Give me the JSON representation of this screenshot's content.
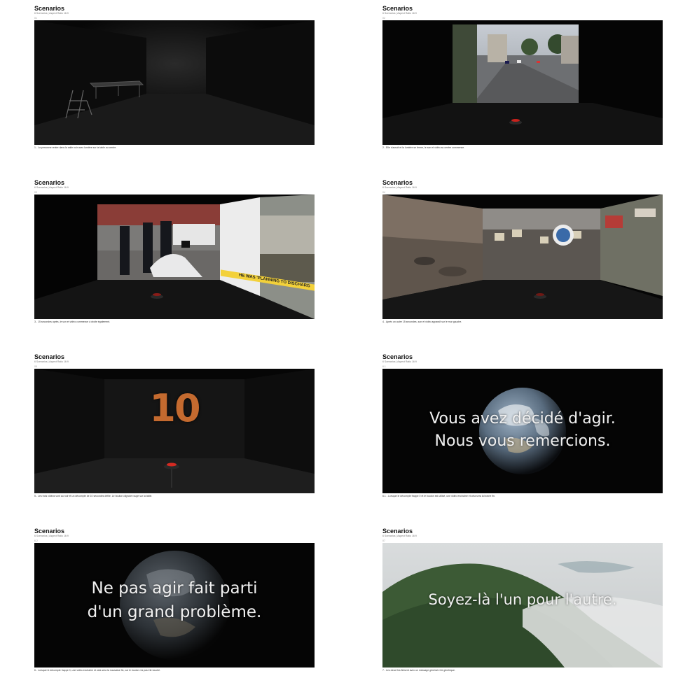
{
  "heading": "Scenarios",
  "subheading": "6 Scenarios | Aspect Ratio 16:9",
  "cards": [
    {
      "num": "01",
      "caption": "1 - La personne rentre dans la salle noir avec lumière sur la table au centre."
    },
    {
      "num": "02",
      "caption": "2 - Elle s'assoit et la lumière se ferme, le son et vidéo au centre commence."
    },
    {
      "num": "03",
      "caption": "3 - 15 secondes après, le son et vidéo commence à droite également.",
      "banner": "HE WAS 'PLANNING TO DISCHARG"
    },
    {
      "num": "04",
      "caption": "4 - Après un autre 15 secondes, son et vidéo apparaît sur le mur gauche."
    },
    {
      "num": "05",
      "caption": "5 - Les trois vidéos vont au noir et un décompte de 10 secondes défile. Le bouton clignote rouge sur la table.",
      "countdown": "10"
    },
    {
      "num": "6.1",
      "caption": "6.1 - Lorsque le décompte frappe 0 et le bouton est utilisé, une vidéo enchaîne et cela sera la bonne fin.",
      "lines": [
        "Vous avez décidé d'agir.",
        "Nous vous remercions."
      ]
    },
    {
      "num": "6.2",
      "caption": "6 - Lorsque le décompte frappe 0, une vidéo enchaîne et cela sera la mauvaise fin, car le bouton n'a pas été touché.",
      "lines": [
        "Ne pas agir fait parti",
        "d'un grand problème."
      ]
    },
    {
      "num": "07",
      "caption": "7 - Les deux fins finisent avec un message général et le générique.",
      "lines": [
        "Soyez-là l'un pour l'autre."
      ]
    }
  ]
}
